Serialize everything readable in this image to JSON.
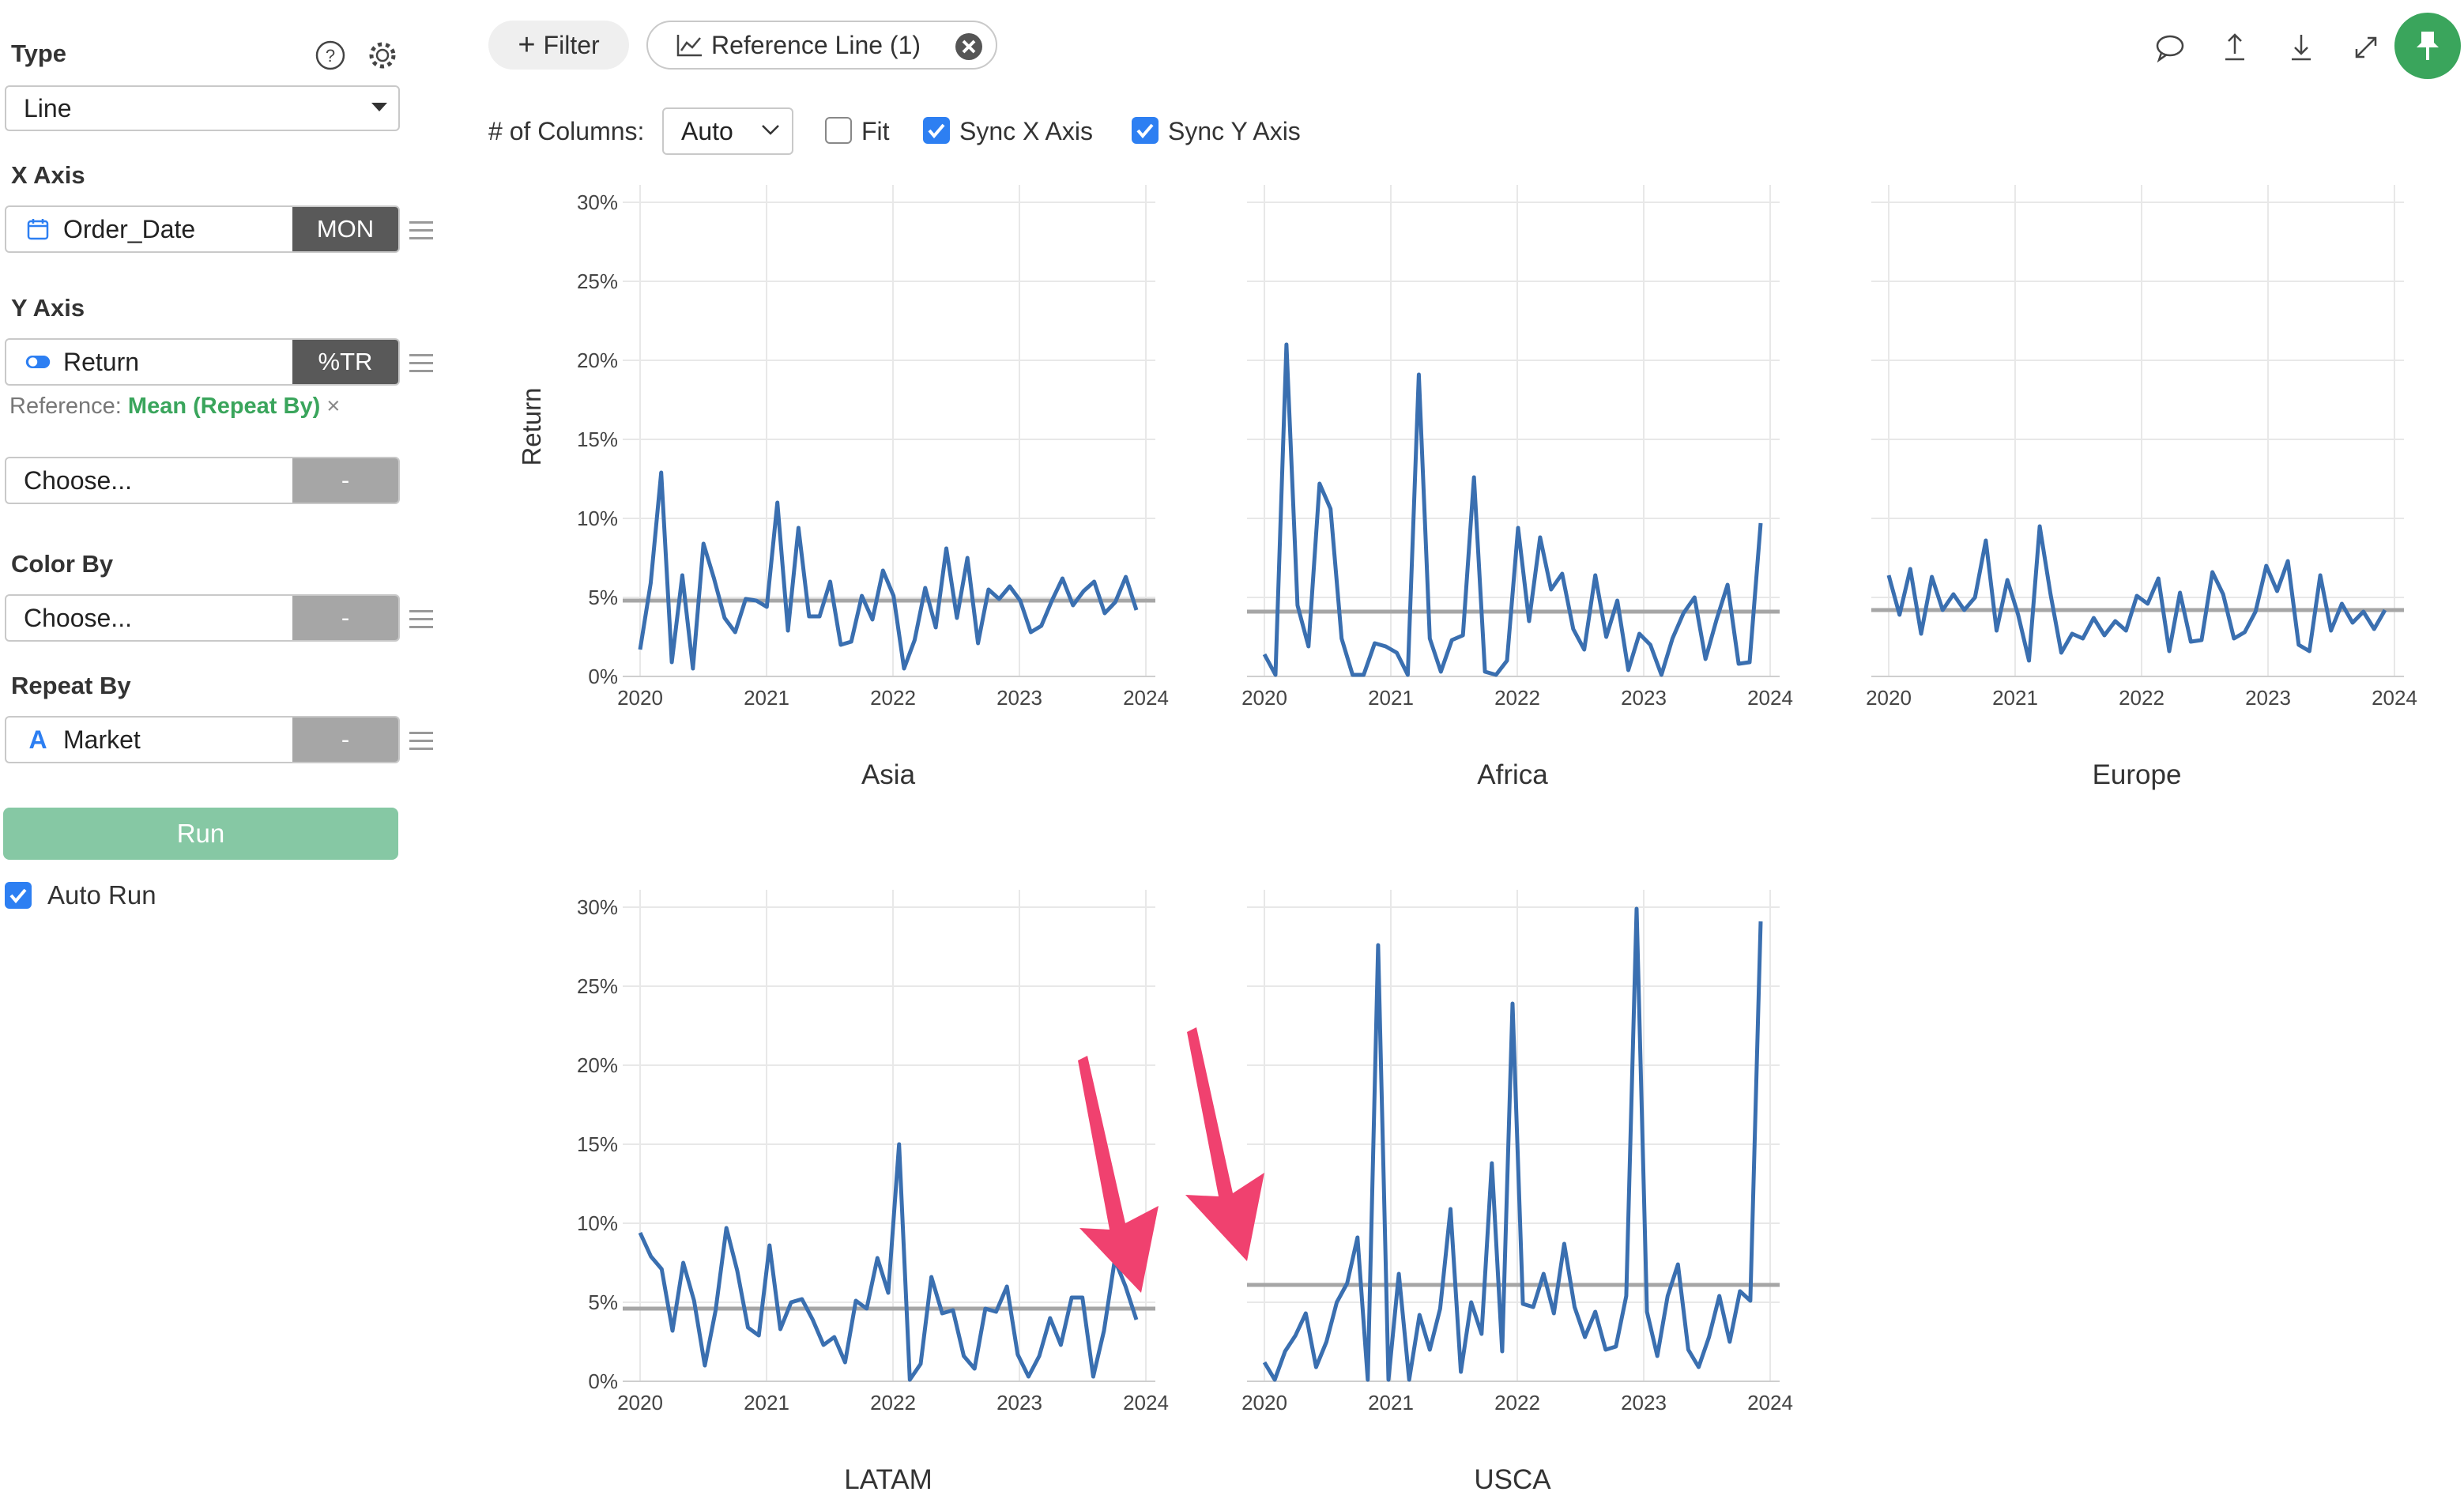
{
  "sidebar": {
    "type_label": "Type",
    "type_value": "Line",
    "x_axis_label": "X Axis",
    "x_field": "Order_Date",
    "x_agg": "MON",
    "y_axis_label": "Y Axis",
    "y_field": "Return",
    "y_agg": "%TR",
    "reference_prefix": "Reference:",
    "reference_value": "Mean (Repeat By)",
    "choose1": "Choose...",
    "choose1_tag": "-",
    "color_by_label": "Color By",
    "color_by_value": "Choose...",
    "color_by_tag": "-",
    "repeat_by_label": "Repeat By",
    "repeat_by_value": "Market",
    "repeat_by_tag": "-",
    "run_label": "Run",
    "auto_run_label": "Auto Run"
  },
  "toolbar": {
    "filter_label": "Filter",
    "reference_line_label": "Reference Line (1)",
    "columns_label": "# of Columns:",
    "columns_value": "Auto",
    "fit_label": "Fit",
    "sync_x_label": "Sync X Axis",
    "sync_y_label": "Sync Y Axis"
  },
  "colors": {
    "line": "#3a6fb0",
    "reference": "#a6a6a6",
    "grid": "#e8e8e8",
    "accent_green": "#3aa55c",
    "checkbox": "#2d7ff2",
    "arrow": "#f0416f"
  },
  "chart_data": {
    "type": "line",
    "ylabel": "Return",
    "y_ticks": [
      "0%",
      "5%",
      "10%",
      "15%",
      "20%",
      "25%",
      "30%"
    ],
    "x_ticks": [
      "2020",
      "2021",
      "2022",
      "2023",
      "2024"
    ],
    "ylim": [
      0,
      30
    ],
    "xlim": [
      2020,
      2024
    ],
    "grid": true,
    "panels": [
      {
        "name": "Asia",
        "mean": 4.8,
        "values": [
          1.7,
          5.9,
          12.9,
          0.9,
          6.4,
          0.5,
          8.4,
          6.2,
          3.7,
          2.8,
          4.9,
          4.8,
          4.4,
          11.0,
          2.9,
          9.4,
          3.8,
          3.8,
          6.0,
          2.0,
          2.2,
          5.1,
          3.6,
          6.7,
          5.1,
          0.5,
          2.3,
          5.6,
          3.1,
          8.1,
          3.7,
          7.5,
          2.1,
          5.5,
          4.9,
          5.7,
          4.8,
          2.8,
          3.2,
          4.8,
          6.2,
          4.5,
          5.4,
          6.0,
          4.0,
          4.7,
          6.3,
          4.2
        ]
      },
      {
        "name": "Africa",
        "mean": 4.1,
        "values": [
          1.4,
          0.1,
          21.0,
          4.5,
          1.9,
          12.2,
          10.6,
          2.4,
          0.1,
          0.1,
          2.1,
          1.9,
          1.5,
          0.1,
          19.1,
          2.4,
          0.3,
          2.3,
          2.6,
          12.6,
          0.3,
          0.1,
          1.0,
          9.4,
          3.5,
          8.8,
          5.5,
          6.5,
          3.0,
          1.7,
          6.4,
          2.5,
          4.8,
          0.4,
          2.7,
          2.0,
          0.1,
          2.4,
          4.0,
          5.0,
          1.1,
          3.6,
          5.8,
          0.8,
          0.9,
          9.7
        ]
      },
      {
        "name": "Europe",
        "mean": 4.2,
        "values": [
          6.4,
          3.9,
          6.8,
          2.7,
          6.3,
          4.2,
          5.2,
          4.2,
          5.0,
          8.6,
          2.9,
          6.1,
          3.9,
          1.0,
          9.5,
          5.2,
          1.5,
          2.7,
          2.4,
          3.7,
          2.6,
          3.5,
          2.9,
          5.1,
          4.6,
          6.2,
          1.6,
          5.3,
          2.2,
          2.3,
          6.6,
          5.2,
          2.4,
          2.8,
          4.1,
          7.0,
          5.4,
          7.3,
          2.0,
          1.6,
          6.4,
          2.9,
          4.6,
          3.4,
          4.1,
          3.0,
          4.2
        ]
      },
      {
        "name": "LATAM",
        "mean": 4.6,
        "values": [
          9.4,
          7.9,
          7.1,
          3.2,
          7.5,
          5.1,
          1.0,
          4.5,
          9.7,
          7.0,
          3.4,
          2.9,
          8.6,
          3.3,
          5.0,
          5.2,
          3.9,
          2.3,
          2.8,
          1.2,
          5.1,
          4.6,
          7.8,
          5.6,
          15.0,
          0.1,
          1.1,
          6.6,
          4.3,
          4.5,
          1.6,
          0.8,
          4.6,
          4.4,
          6.0,
          1.7,
          0.3,
          1.6,
          4.0,
          2.3,
          5.3,
          5.3,
          0.3,
          3.2,
          7.7,
          6.0,
          3.9
        ]
      },
      {
        "name": "USCA",
        "mean": 6.1,
        "values": [
          1.2,
          0.1,
          1.9,
          2.9,
          4.3,
          0.9,
          2.5,
          5.0,
          6.2,
          9.1,
          0.1,
          27.6,
          0.1,
          6.8,
          0.1,
          4.2,
          2.0,
          4.6,
          10.9,
          0.6,
          5.0,
          3.0,
          13.8,
          1.9,
          23.9,
          4.9,
          4.7,
          6.8,
          4.3,
          8.7,
          4.7,
          2.8,
          4.4,
          2.0,
          2.2,
          5.4,
          29.9,
          4.4,
          1.6,
          5.4,
          7.4,
          2.0,
          0.9,
          2.8,
          5.4,
          2.5,
          5.7,
          5.1,
          29.1
        ]
      }
    ]
  }
}
